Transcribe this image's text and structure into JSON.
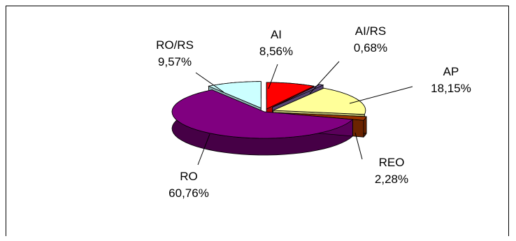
{
  "chart_data": {
    "type": "pie",
    "style": "3d-exploded",
    "slices": [
      {
        "name": "AI",
        "value": 8.56,
        "label": "8,56%",
        "color": "#ff0000"
      },
      {
        "name": "AI/RS",
        "value": 0.68,
        "label": "0,68%",
        "color": "#7b5fa0"
      },
      {
        "name": "AP",
        "value": 18.15,
        "label": "18,15%",
        "color": "#ffff99"
      },
      {
        "name": "REO",
        "value": 2.28,
        "label": "2,28%",
        "color": "#993300"
      },
      {
        "name": "RO",
        "value": 60.76,
        "label": "60,76%",
        "color": "#800080"
      },
      {
        "name": "RO/RS",
        "value": 9.57,
        "label": "9,57%",
        "color": "#ccffff"
      }
    ]
  }
}
